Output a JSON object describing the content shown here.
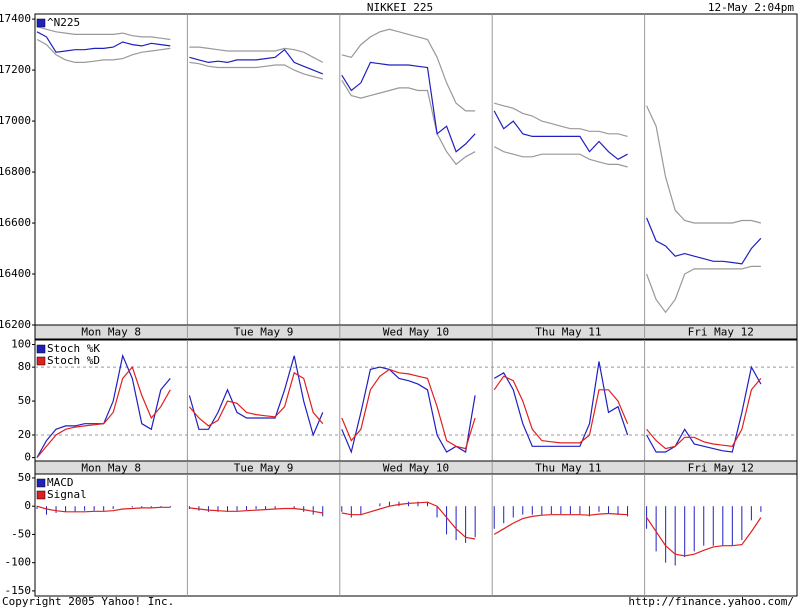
{
  "header": {
    "title": "NIKKEI 225",
    "timestamp": "12-May 2:04pm"
  },
  "footer": {
    "copyright": "Copyright 2005 Yahoo! Inc.",
    "source": "http://finance.yahoo.com/"
  },
  "chart_data": [
    {
      "type": "line",
      "day_labels": [
        "Mon May 8",
        "Tue May 9",
        "Wed May 10",
        "Thu May 11",
        "Fri May 12"
      ],
      "ylim": [
        16200,
        17420
      ],
      "yticks": [
        16200,
        16400,
        16600,
        16800,
        17000,
        17200,
        17400
      ],
      "series": [
        {
          "color": "#999999",
          "values": [
            17370,
            17360,
            17350,
            17345,
            17340,
            17340,
            17340,
            17340,
            17340,
            17345,
            17335,
            17330,
            17330,
            17325,
            17320,
            null,
            17290,
            17290,
            17285,
            17280,
            17275,
            17275,
            17275,
            17275,
            17275,
            17275,
            17285,
            17280,
            17270,
            17250,
            17230,
            null,
            17260,
            17250,
            17300,
            17330,
            17350,
            17360,
            17350,
            17340,
            17330,
            17320,
            17250,
            17150,
            17070,
            17040,
            17040,
            null,
            17070,
            17060,
            17050,
            17030,
            17020,
            17000,
            16990,
            16980,
            16970,
            16970,
            16960,
            16960,
            16950,
            16950,
            16940,
            null,
            17060,
            16980,
            16780,
            16650,
            16610,
            16600,
            16600,
            16600,
            16600,
            16600,
            16610,
            16610,
            16600
          ]
        },
        {
          "color": "#999999",
          "values": [
            17320,
            17300,
            17260,
            17240,
            17230,
            17230,
            17235,
            17240,
            17240,
            17245,
            17260,
            17270,
            17275,
            17280,
            17285,
            null,
            17230,
            17225,
            17215,
            17210,
            17210,
            17210,
            17210,
            17210,
            17215,
            17220,
            17220,
            17200,
            17185,
            17175,
            17165,
            null,
            17160,
            17100,
            17090,
            17100,
            17110,
            17120,
            17130,
            17130,
            17120,
            17120,
            16950,
            16880,
            16830,
            16860,
            16880,
            null,
            16900,
            16880,
            16870,
            16860,
            16860,
            16870,
            16870,
            16870,
            16870,
            16870,
            16850,
            16840,
            16830,
            16830,
            16820,
            null,
            16400,
            16300,
            16250,
            16300,
            16400,
            16420,
            16420,
            16420,
            16420,
            16420,
            16420,
            16430,
            16430
          ]
        },
        {
          "name": "^N225",
          "color": "#2020c0",
          "values": [
            17350,
            17330,
            17270,
            17275,
            17280,
            17280,
            17285,
            17285,
            17290,
            17310,
            17300,
            17295,
            17305,
            17300,
            17295,
            null,
            17250,
            17240,
            17230,
            17235,
            17230,
            17240,
            17240,
            17240,
            17245,
            17250,
            17280,
            17230,
            17215,
            17200,
            17185,
            null,
            17180,
            17120,
            17150,
            17230,
            17225,
            17220,
            17220,
            17220,
            17215,
            17210,
            16950,
            16980,
            16880,
            16910,
            16950,
            null,
            17040,
            16970,
            17000,
            16950,
            16940,
            16940,
            16940,
            16940,
            16940,
            16940,
            16880,
            16920,
            16880,
            16850,
            16870,
            null,
            16620,
            16530,
            16510,
            16470,
            16480,
            16470,
            16460,
            16450,
            16450,
            16445,
            16440,
            16500,
            16540
          ]
        }
      ]
    },
    {
      "type": "line",
      "day_labels": [
        "Mon May 8",
        "Tue May 9",
        "Wed May 10",
        "Thu May 11",
        "Fri May 12"
      ],
      "ylim": [
        -3,
        104
      ],
      "yticks": [
        0,
        20,
        50,
        80,
        100
      ],
      "gridlines": [
        20,
        80
      ],
      "series": [
        {
          "name": "Stoch %K",
          "color": "#2020c0",
          "values": [
            0,
            15,
            25,
            28,
            28,
            30,
            30,
            30,
            50,
            90,
            70,
            30,
            25,
            60,
            70,
            null,
            55,
            25,
            25,
            40,
            60,
            40,
            35,
            35,
            35,
            35,
            60,
            90,
            50,
            20,
            40,
            null,
            25,
            5,
            40,
            78,
            80,
            78,
            70,
            68,
            65,
            60,
            20,
            5,
            10,
            5,
            55,
            null,
            70,
            75,
            60,
            30,
            10,
            10,
            10,
            10,
            10,
            10,
            30,
            85,
            40,
            45,
            20,
            null,
            20,
            5,
            5,
            10,
            25,
            12,
            10,
            8,
            6,
            5,
            40,
            80,
            65
          ]
        },
        {
          "name": "Stoch %D",
          "color": "#e02020",
          "values": [
            0,
            10,
            20,
            25,
            27,
            28,
            29,
            30,
            40,
            70,
            80,
            55,
            35,
            45,
            60,
            null,
            45,
            35,
            28,
            33,
            50,
            48,
            40,
            38,
            37,
            36,
            45,
            75,
            70,
            40,
            30,
            null,
            35,
            15,
            25,
            60,
            72,
            78,
            75,
            74,
            72,
            70,
            45,
            15,
            10,
            8,
            35,
            null,
            60,
            72,
            68,
            50,
            25,
            15,
            14,
            13,
            13,
            13,
            20,
            60,
            60,
            50,
            30,
            null,
            25,
            15,
            8,
            10,
            18,
            18,
            14,
            12,
            11,
            10,
            25,
            60,
            70
          ]
        }
      ]
    },
    {
      "type": "line",
      "ylim": [
        -159,
        57
      ],
      "yticks": [
        50,
        0,
        -50,
        -100,
        -150
      ],
      "series": [
        {
          "name": "MACD",
          "type": "bar",
          "color": "#2020c0",
          "values": [
            -5,
            -15,
            -12,
            -10,
            -10,
            -8,
            -8,
            -8,
            -5,
            0,
            -2,
            -3,
            -2,
            -2,
            -2,
            null,
            -5,
            -8,
            -10,
            -10,
            -10,
            -8,
            -7,
            -5,
            -5,
            -4,
            0,
            -5,
            -10,
            -15,
            -18,
            null,
            -10,
            -20,
            -15,
            0,
            5,
            8,
            8,
            8,
            8,
            8,
            -20,
            -50,
            -60,
            -65,
            -55,
            null,
            -40,
            -30,
            -20,
            -15,
            -15,
            -15,
            -14,
            -14,
            -14,
            -14,
            -18,
            -10,
            -12,
            -15,
            -18,
            null,
            -40,
            -80,
            -100,
            -105,
            -90,
            -80,
            -70,
            -70,
            -70,
            -70,
            -60,
            -25,
            -10
          ]
        },
        {
          "name": "Signal",
          "color": "#e02020",
          "values": [
            0,
            -5,
            -8,
            -10,
            -10,
            -10,
            -9,
            -9,
            -8,
            -5,
            -4,
            -3,
            -3,
            -2,
            -2,
            null,
            -3,
            -5,
            -7,
            -8,
            -9,
            -9,
            -8,
            -7,
            -6,
            -5,
            -4,
            -4,
            -6,
            -9,
            -12,
            null,
            -12,
            -15,
            -15,
            -10,
            -5,
            0,
            3,
            5,
            6,
            7,
            0,
            -20,
            -40,
            -55,
            -58,
            null,
            -50,
            -40,
            -30,
            -22,
            -18,
            -16,
            -15,
            -15,
            -15,
            -15,
            -16,
            -14,
            -13,
            -14,
            -15,
            null,
            -20,
            -45,
            -70,
            -85,
            -88,
            -85,
            -78,
            -72,
            -70,
            -70,
            -68,
            -45,
            -20
          ]
        }
      ]
    }
  ]
}
